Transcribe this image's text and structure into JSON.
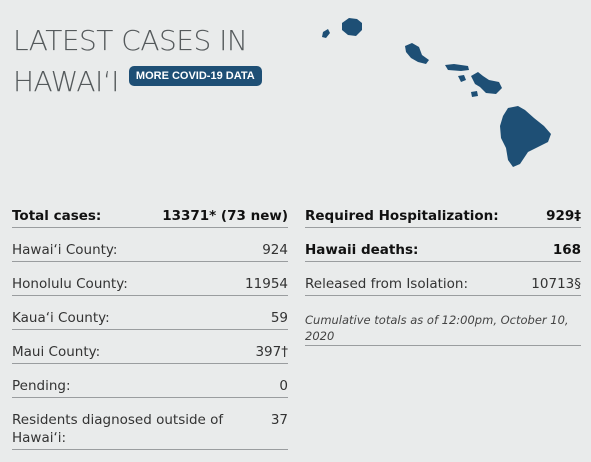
{
  "header": {
    "title_line1": "LATEST CASES IN",
    "title_line2": "HAWAI‘I",
    "badge_label": "MORE COVID-19 DATA"
  },
  "map": {
    "icon": "hawaii-islands-map-icon",
    "color": "#1e4f75"
  },
  "left_stats": [
    {
      "label": "Total cases:",
      "value": "13371* (73 new)"
    },
    {
      "label": "Hawai‘i County:",
      "value": "924"
    },
    {
      "label": "Honolulu County:",
      "value": "11954"
    },
    {
      "label": "Kaua‘i County:",
      "value": "59"
    },
    {
      "label": "Maui County:",
      "value": "397†"
    },
    {
      "label": "Pending:",
      "value": "0"
    },
    {
      "label": "Residents diagnosed outside of Hawai‘i:",
      "value": "37"
    }
  ],
  "right_stats": [
    {
      "label": "Required Hospitalization:",
      "value": "929‡"
    },
    {
      "label": "Hawaii deaths:",
      "value": "168"
    },
    {
      "label": "Released from Isolation:",
      "value": "10713§"
    }
  ],
  "note": "Cumulative totals as of 12:00pm, October 10, 2020",
  "colors": {
    "background": "#e9ebeb",
    "accent": "#1e4f75"
  }
}
